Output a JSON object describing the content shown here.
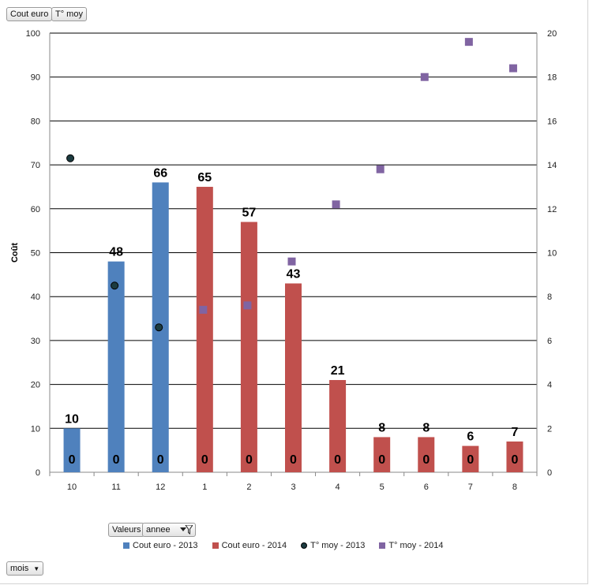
{
  "buttons": {
    "cout_euro": "Cout euro",
    "t_moy": "T° moy",
    "valeurs": "Valeurs",
    "annee": "annee",
    "mois": "mois"
  },
  "colors": {
    "cout_2013": "#4f81bd",
    "cout_2014": "#c0504d",
    "tmoy_2013": "#1c3b40",
    "tmoy_2014": "#8064a2"
  },
  "chart_data": {
    "type": "bar",
    "categories": [
      "10",
      "11",
      "12",
      "1",
      "2",
      "3",
      "4",
      "5",
      "6",
      "7",
      "8"
    ],
    "ylabel": "Coût",
    "ylim": [
      0,
      100
    ],
    "yticks": [
      0,
      10,
      20,
      30,
      40,
      50,
      60,
      70,
      80,
      90,
      100
    ],
    "y2lim": [
      0,
      20
    ],
    "y2ticks": [
      0,
      2,
      4,
      6,
      8,
      10,
      12,
      14,
      16,
      18,
      20
    ],
    "grid": true,
    "legend_position": "bottom",
    "series": [
      {
        "name": "Cout euro - 2013",
        "type": "bar",
        "axis": "left",
        "values": [
          10,
          48,
          66,
          null,
          null,
          null,
          null,
          null,
          null,
          null,
          null
        ],
        "labels": [
          "10",
          "48",
          "66",
          "",
          "",
          "",
          "",
          "",
          "",
          "",
          ""
        ]
      },
      {
        "name": "Cout euro - 2014",
        "type": "bar",
        "axis": "left",
        "values": [
          null,
          null,
          null,
          65,
          57,
          43,
          21,
          8,
          8,
          6,
          7
        ],
        "labels": [
          "",
          "",
          "",
          "65",
          "57",
          "43",
          "21",
          "8",
          "8",
          "6",
          "7"
        ]
      },
      {
        "name": "T° moy - 2013",
        "type": "scatter",
        "axis": "right",
        "values": [
          14.3,
          8.5,
          6.6,
          null,
          null,
          null,
          null,
          null,
          null,
          null,
          null
        ]
      },
      {
        "name": "T° moy - 2014",
        "type": "scatter",
        "axis": "right",
        "values": [
          null,
          null,
          null,
          7.4,
          7.6,
          9.6,
          12.2,
          13.8,
          18.0,
          19.6,
          18.4
        ]
      }
    ],
    "zero_labels": [
      "0",
      "0",
      "0",
      "0",
      "0",
      "0",
      "0",
      "0",
      "0",
      "0",
      "0"
    ]
  }
}
